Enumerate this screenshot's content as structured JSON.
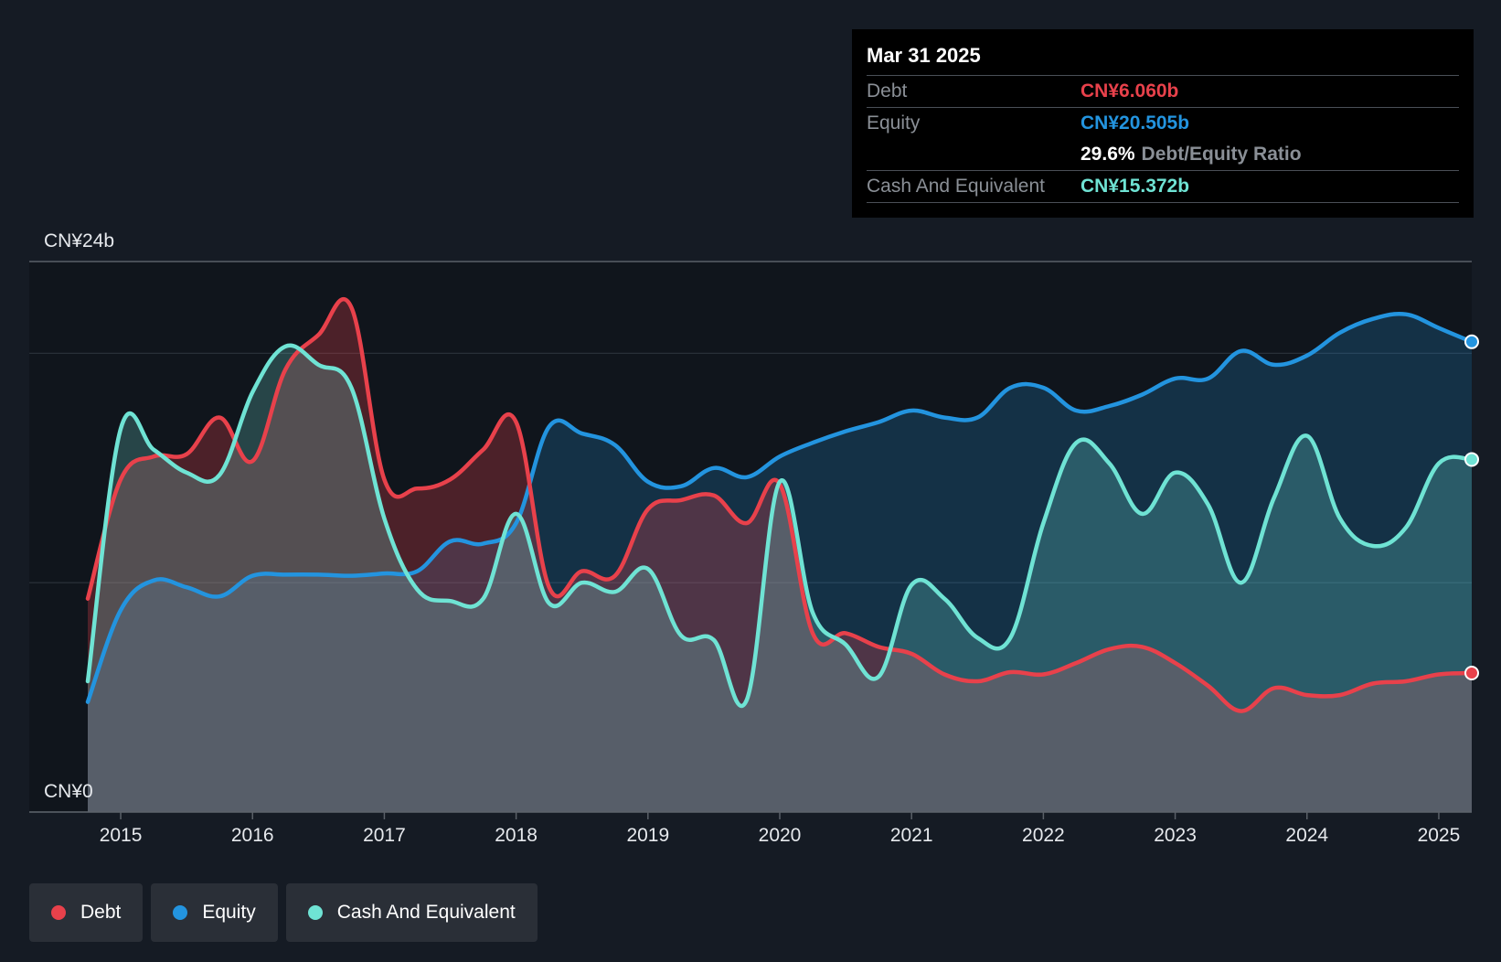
{
  "tooltip": {
    "date": "Mar 31 2025",
    "debt_label": "Debt",
    "debt_value": "CN¥6.060b",
    "equity_label": "Equity",
    "equity_value": "CN¥20.505b",
    "ratio_value": "29.6%",
    "ratio_label": "Debt/Equity Ratio",
    "cash_label": "Cash And Equivalent",
    "cash_value": "CN¥15.372b"
  },
  "legend": [
    {
      "label": "Debt",
      "color": "#e8414b"
    },
    {
      "label": "Equity",
      "color": "#2394df"
    },
    {
      "label": "Cash And Equivalent",
      "color": "#6fe3d4"
    }
  ],
  "chart_data": {
    "type": "area",
    "ylim": [
      0,
      24
    ],
    "y_tick_labels": [
      {
        "value": 24,
        "label": "CN¥24b"
      },
      {
        "value": 0,
        "label": "CN¥0"
      }
    ],
    "gridlines": [
      24,
      20,
      10,
      0
    ],
    "xlim": [
      2014.75,
      2025.25
    ],
    "x_ticks": [
      2015,
      2016,
      2017,
      2018,
      2019,
      2020,
      2021,
      2022,
      2023,
      2024,
      2025
    ],
    "series": [
      {
        "name": "Debt",
        "color": "#e8414b",
        "points": [
          [
            2014.75,
            9.3
          ],
          [
            2015.0,
            14.5
          ],
          [
            2015.25,
            15.5
          ],
          [
            2015.5,
            15.6
          ],
          [
            2015.75,
            17.2
          ],
          [
            2016.0,
            15.3
          ],
          [
            2016.25,
            19.3
          ],
          [
            2016.5,
            20.8
          ],
          [
            2016.75,
            22.0
          ],
          [
            2017.0,
            14.5
          ],
          [
            2017.25,
            14.1
          ],
          [
            2017.5,
            14.5
          ],
          [
            2017.75,
            15.8
          ],
          [
            2018.0,
            17.0
          ],
          [
            2018.25,
            9.8
          ],
          [
            2018.5,
            10.5
          ],
          [
            2018.75,
            10.3
          ],
          [
            2019.0,
            13.2
          ],
          [
            2019.25,
            13.6
          ],
          [
            2019.5,
            13.8
          ],
          [
            2019.75,
            12.6
          ],
          [
            2020.0,
            14.3
          ],
          [
            2020.25,
            7.8
          ],
          [
            2020.5,
            7.8
          ],
          [
            2020.75,
            7.2
          ],
          [
            2021.0,
            6.9
          ],
          [
            2021.25,
            6.0
          ],
          [
            2021.5,
            5.7
          ],
          [
            2021.75,
            6.1
          ],
          [
            2022.0,
            6.0
          ],
          [
            2022.25,
            6.5
          ],
          [
            2022.5,
            7.1
          ],
          [
            2022.75,
            7.2
          ],
          [
            2023.0,
            6.5
          ],
          [
            2023.25,
            5.5
          ],
          [
            2023.5,
            4.4
          ],
          [
            2023.75,
            5.4
          ],
          [
            2024.0,
            5.1
          ],
          [
            2024.25,
            5.1
          ],
          [
            2024.5,
            5.6
          ],
          [
            2024.75,
            5.7
          ],
          [
            2025.0,
            6.0
          ],
          [
            2025.25,
            6.06
          ]
        ]
      },
      {
        "name": "Equity",
        "color": "#2394df",
        "points": [
          [
            2014.75,
            4.8
          ],
          [
            2015.0,
            8.8
          ],
          [
            2015.25,
            10.1
          ],
          [
            2015.5,
            9.8
          ],
          [
            2015.75,
            9.4
          ],
          [
            2016.0,
            10.3
          ],
          [
            2016.25,
            10.35
          ],
          [
            2016.5,
            10.35
          ],
          [
            2016.75,
            10.3
          ],
          [
            2017.0,
            10.4
          ],
          [
            2017.25,
            10.5
          ],
          [
            2017.5,
            11.8
          ],
          [
            2017.75,
            11.7
          ],
          [
            2018.0,
            12.6
          ],
          [
            2018.25,
            16.8
          ],
          [
            2018.5,
            16.5
          ],
          [
            2018.75,
            16.0
          ],
          [
            2019.0,
            14.4
          ],
          [
            2019.25,
            14.2
          ],
          [
            2019.5,
            15.0
          ],
          [
            2019.75,
            14.6
          ],
          [
            2020.0,
            15.5
          ],
          [
            2020.25,
            16.1
          ],
          [
            2020.5,
            16.6
          ],
          [
            2020.75,
            17.0
          ],
          [
            2021.0,
            17.5
          ],
          [
            2021.25,
            17.2
          ],
          [
            2021.5,
            17.2
          ],
          [
            2021.75,
            18.5
          ],
          [
            2022.0,
            18.5
          ],
          [
            2022.25,
            17.5
          ],
          [
            2022.5,
            17.7
          ],
          [
            2022.75,
            18.2
          ],
          [
            2023.0,
            18.9
          ],
          [
            2023.25,
            18.9
          ],
          [
            2023.5,
            20.1
          ],
          [
            2023.75,
            19.5
          ],
          [
            2024.0,
            19.9
          ],
          [
            2024.25,
            20.9
          ],
          [
            2024.5,
            21.5
          ],
          [
            2024.75,
            21.7
          ],
          [
            2025.0,
            21.1
          ],
          [
            2025.25,
            20.5
          ]
        ]
      },
      {
        "name": "Cash And Equivalent",
        "color": "#6fe3d4",
        "points": [
          [
            2014.75,
            5.7
          ],
          [
            2015.0,
            16.7
          ],
          [
            2015.25,
            15.8
          ],
          [
            2015.5,
            14.8
          ],
          [
            2015.75,
            14.7
          ],
          [
            2016.0,
            18.3
          ],
          [
            2016.25,
            20.3
          ],
          [
            2016.5,
            19.5
          ],
          [
            2016.75,
            18.5
          ],
          [
            2017.0,
            12.8
          ],
          [
            2017.25,
            9.7
          ],
          [
            2017.5,
            9.2
          ],
          [
            2017.75,
            9.3
          ],
          [
            2018.0,
            13.0
          ],
          [
            2018.25,
            9.1
          ],
          [
            2018.5,
            10.0
          ],
          [
            2018.75,
            9.6
          ],
          [
            2019.0,
            10.6
          ],
          [
            2019.25,
            7.7
          ],
          [
            2019.5,
            7.5
          ],
          [
            2019.75,
            4.9
          ],
          [
            2020.0,
            14.4
          ],
          [
            2020.25,
            8.7
          ],
          [
            2020.5,
            7.3
          ],
          [
            2020.75,
            5.9
          ],
          [
            2021.0,
            9.9
          ],
          [
            2021.25,
            9.3
          ],
          [
            2021.5,
            7.6
          ],
          [
            2021.75,
            7.6
          ],
          [
            2022.0,
            12.6
          ],
          [
            2022.25,
            16.1
          ],
          [
            2022.5,
            15.2
          ],
          [
            2022.75,
            13.0
          ],
          [
            2023.0,
            14.8
          ],
          [
            2023.25,
            13.4
          ],
          [
            2023.5,
            10.0
          ],
          [
            2023.75,
            13.7
          ],
          [
            2024.0,
            16.4
          ],
          [
            2024.25,
            12.8
          ],
          [
            2024.5,
            11.6
          ],
          [
            2024.75,
            12.4
          ],
          [
            2025.0,
            15.2
          ],
          [
            2025.25,
            15.37
          ]
        ]
      }
    ]
  }
}
